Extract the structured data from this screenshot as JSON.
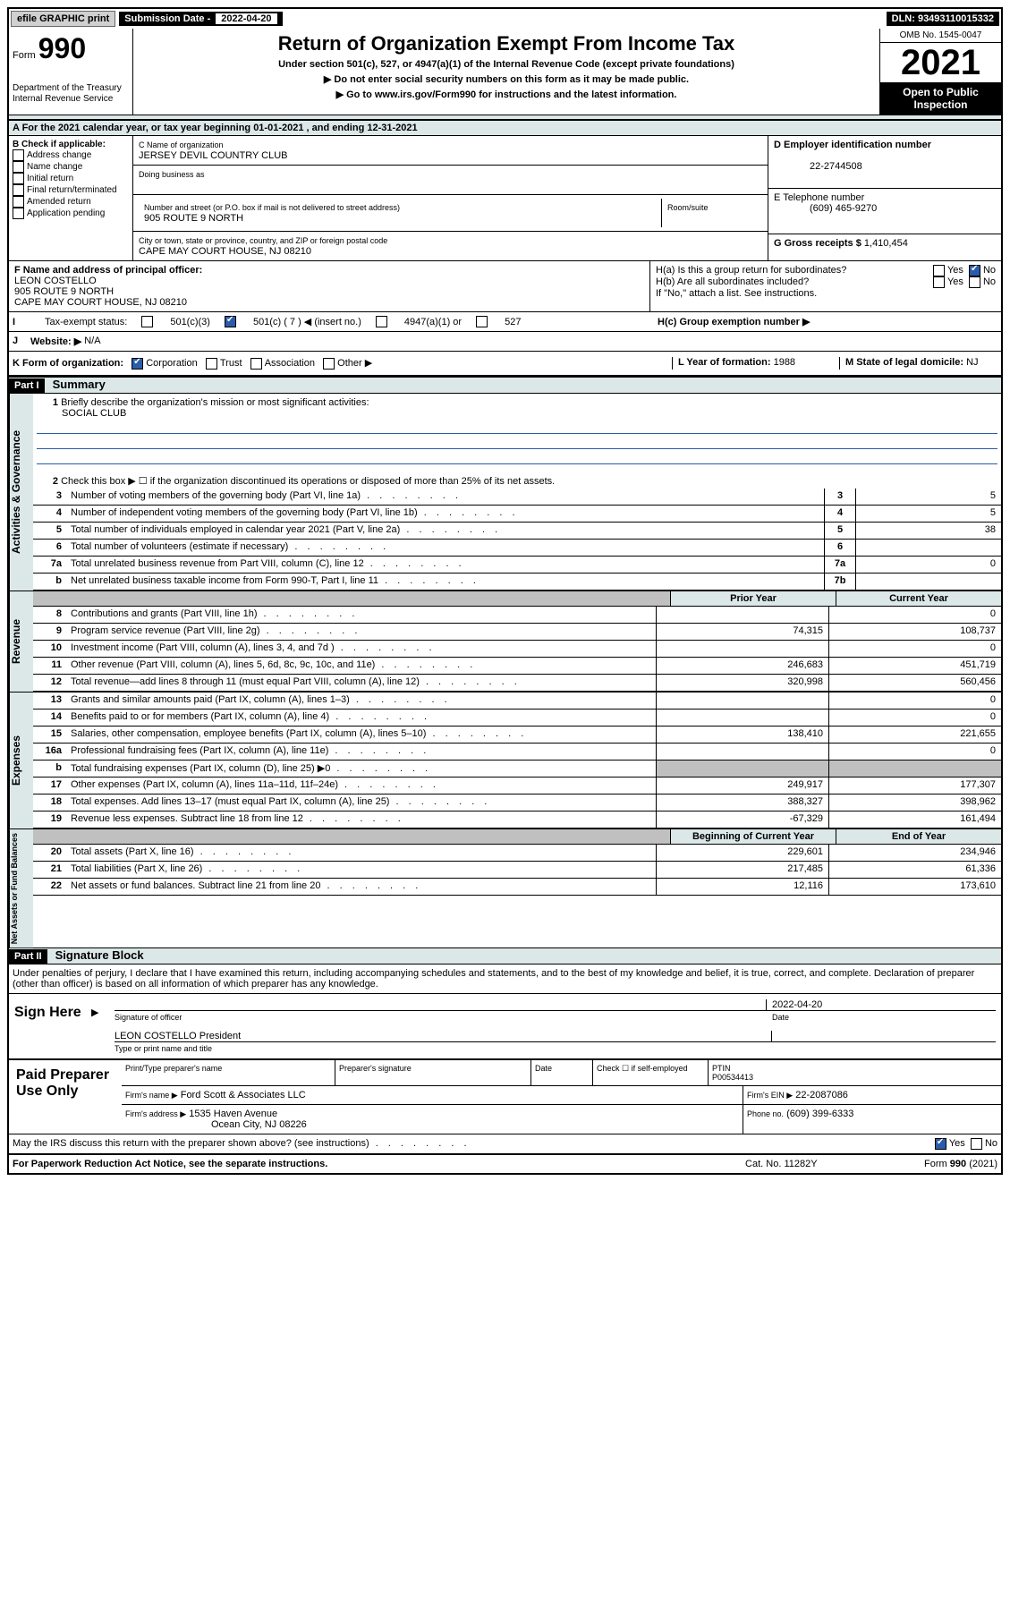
{
  "topbar": {
    "efile": "efile GRAPHIC print",
    "sub_date_label": "Submission Date - ",
    "sub_date": "2022-04-20",
    "dln": "DLN: 93493110015332"
  },
  "header": {
    "form_word": "Form",
    "form_number": "990",
    "title": "Return of Organization Exempt From Income Tax",
    "subtitle1": "Under section 501(c), 527, or 4947(a)(1) of the Internal Revenue Code (except private foundations)",
    "subtitle2": "▶ Do not enter social security numbers on this form as it may be made public.",
    "subtitle3": "▶ Go to www.irs.gov/Form990 for instructions and the latest information.",
    "dept": "Department of the Treasury",
    "irs": "Internal Revenue Service",
    "omb": "OMB No. 1545-0047",
    "year": "2021",
    "open": "Open to Public Inspection"
  },
  "rowA": "A For the 2021 calendar year, or tax year beginning 01-01-2021   , and ending 12-31-2021",
  "sectionB": {
    "label": "B Check if applicable:",
    "opts": [
      "Address change",
      "Name change",
      "Initial return",
      "Final return/terminated",
      "Amended return",
      "Application pending"
    ]
  },
  "sectionC": {
    "name_label": "C Name of organization",
    "name": "JERSEY DEVIL COUNTRY CLUB",
    "dba_label": "Doing business as",
    "street_label": "Number and street (or P.O. box if mail is not delivered to street address)",
    "room_label": "Room/suite",
    "street": "905 ROUTE 9 NORTH",
    "city_label": "City or town, state or province, country, and ZIP or foreign postal code",
    "city": "CAPE MAY COURT HOUSE, NJ  08210"
  },
  "sectionD": {
    "label": "D Employer identification number",
    "ein": "22-2744508"
  },
  "sectionE": {
    "label": "E Telephone number",
    "phone": "(609) 465-9270"
  },
  "sectionG": {
    "label": "G Gross receipts $",
    "amount": "1,410,454"
  },
  "sectionF": {
    "label": "F Name and address of principal officer:",
    "name": "LEON COSTELLO",
    "street": "905 ROUTE 9 NORTH",
    "city": "CAPE MAY COURT HOUSE, NJ  08210"
  },
  "sectionH": {
    "a": "H(a)  Is this a group return for subordinates?",
    "b": "H(b)  Are all subordinates included?",
    "b_note": "If \"No,\" attach a list. See instructions.",
    "c": "H(c)  Group exemption number ▶",
    "yes": "Yes",
    "no": "No"
  },
  "sectionI": {
    "label": "Tax-exempt status:",
    "opts": [
      "501(c)(3)",
      "501(c) ( 7 ) ◀ (insert no.)",
      "4947(a)(1) or",
      "527"
    ]
  },
  "sectionJ": {
    "label": "Website: ▶",
    "val": "N/A"
  },
  "sectionK": {
    "label": "K Form of organization:",
    "opts": [
      "Corporation",
      "Trust",
      "Association",
      "Other ▶"
    ]
  },
  "sectionL": {
    "label": "L Year of formation:",
    "val": "1988"
  },
  "sectionM": {
    "label": "M State of legal domicile:",
    "val": "NJ"
  },
  "partI": {
    "part": "Part I",
    "title": "Summary"
  },
  "summary": {
    "q1": "Briefly describe the organization's mission or most significant activities:",
    "mission": "SOCIAL CLUB",
    "q2": "Check this box ▶ ☐  if the organization discontinued its operations or disposed of more than 25% of its net assets.",
    "rows_gov": [
      {
        "n": "3",
        "desc": "Number of voting members of the governing body (Part VI, line 1a)",
        "box": "3",
        "val": "5"
      },
      {
        "n": "4",
        "desc": "Number of independent voting members of the governing body (Part VI, line 1b)",
        "box": "4",
        "val": "5"
      },
      {
        "n": "5",
        "desc": "Total number of individuals employed in calendar year 2021 (Part V, line 2a)",
        "box": "5",
        "val": "38"
      },
      {
        "n": "6",
        "desc": "Total number of volunteers (estimate if necessary)",
        "box": "6",
        "val": ""
      },
      {
        "n": "7a",
        "desc": "Total unrelated business revenue from Part VIII, column (C), line 12",
        "box": "7a",
        "val": "0"
      },
      {
        "n": "b",
        "desc": "Net unrelated business taxable income from Form 990-T, Part I, line 11",
        "box": "7b",
        "val": ""
      }
    ],
    "prior_year": "Prior Year",
    "current_year": "Current Year",
    "revenue": [
      {
        "n": "8",
        "desc": "Contributions and grants (Part VIII, line 1h)",
        "prior": "",
        "curr": "0"
      },
      {
        "n": "9",
        "desc": "Program service revenue (Part VIII, line 2g)",
        "prior": "74,315",
        "curr": "108,737"
      },
      {
        "n": "10",
        "desc": "Investment income (Part VIII, column (A), lines 3, 4, and 7d )",
        "prior": "",
        "curr": "0"
      },
      {
        "n": "11",
        "desc": "Other revenue (Part VIII, column (A), lines 5, 6d, 8c, 9c, 10c, and 11e)",
        "prior": "246,683",
        "curr": "451,719"
      },
      {
        "n": "12",
        "desc": "Total revenue—add lines 8 through 11 (must equal Part VIII, column (A), line 12)",
        "prior": "320,998",
        "curr": "560,456"
      }
    ],
    "expenses": [
      {
        "n": "13",
        "desc": "Grants and similar amounts paid (Part IX, column (A), lines 1–3)",
        "prior": "",
        "curr": "0"
      },
      {
        "n": "14",
        "desc": "Benefits paid to or for members (Part IX, column (A), line 4)",
        "prior": "",
        "curr": "0"
      },
      {
        "n": "15",
        "desc": "Salaries, other compensation, employee benefits (Part IX, column (A), lines 5–10)",
        "prior": "138,410",
        "curr": "221,655"
      },
      {
        "n": "16a",
        "desc": "Professional fundraising fees (Part IX, column (A), line 11e)",
        "prior": "",
        "curr": "0"
      },
      {
        "n": "b",
        "desc": "Total fundraising expenses (Part IX, column (D), line 25) ▶0",
        "prior": "shaded",
        "curr": "shaded"
      },
      {
        "n": "17",
        "desc": "Other expenses (Part IX, column (A), lines 11a–11d, 11f–24e)",
        "prior": "249,917",
        "curr": "177,307"
      },
      {
        "n": "18",
        "desc": "Total expenses. Add lines 13–17 (must equal Part IX, column (A), line 25)",
        "prior": "388,327",
        "curr": "398,962"
      },
      {
        "n": "19",
        "desc": "Revenue less expenses. Subtract line 18 from line 12",
        "prior": "-67,329",
        "curr": "161,494"
      }
    ],
    "begin_year": "Beginning of Current Year",
    "end_year": "End of Year",
    "net_assets": [
      {
        "n": "20",
        "desc": "Total assets (Part X, line 16)",
        "prior": "229,601",
        "curr": "234,946"
      },
      {
        "n": "21",
        "desc": "Total liabilities (Part X, line 26)",
        "prior": "217,485",
        "curr": "61,336"
      },
      {
        "n": "22",
        "desc": "Net assets or fund balances. Subtract line 21 from line 20",
        "prior": "12,116",
        "curr": "173,610"
      }
    ]
  },
  "side_labels": {
    "gov": "Activities & Governance",
    "rev": "Revenue",
    "exp": "Expenses",
    "net": "Net Assets or Fund Balances"
  },
  "partII": {
    "part": "Part II",
    "title": "Signature Block"
  },
  "perjury": "Under penalties of perjury, I declare that I have examined this return, including accompanying schedules and statements, and to the best of my knowledge and belief, it is true, correct, and complete. Declaration of preparer (other than officer) is based on all information of which preparer has any knowledge.",
  "sign": {
    "here": "Sign Here",
    "sig_officer": "Signature of officer",
    "date": "Date",
    "date_val": "2022-04-20",
    "name_title": "LEON COSTELLO  President",
    "type_name": "Type or print name and title"
  },
  "preparer": {
    "label": "Paid Preparer Use Only",
    "print_name": "Print/Type preparer's name",
    "sig": "Preparer's signature",
    "date": "Date",
    "check_if": "Check ☐ if self-employed",
    "ptin_label": "PTIN",
    "ptin": "P00534413",
    "firm_name_label": "Firm's name      ▶",
    "firm_name": "Ford Scott & Associates LLC",
    "firm_ein_label": "Firm's EIN ▶",
    "firm_ein": "22-2087086",
    "firm_addr_label": "Firm's address ▶",
    "firm_addr": "1535 Haven Avenue",
    "firm_city": "Ocean City, NJ  08226",
    "phone_label": "Phone no.",
    "phone": "(609) 399-6333"
  },
  "discuss": {
    "q": "May the IRS discuss this return with the preparer shown above? (see instructions)",
    "yes": "Yes",
    "no": "No"
  },
  "footer": {
    "left": "For Paperwork Reduction Act Notice, see the separate instructions.",
    "center": "Cat. No. 11282Y",
    "right": "Form 990 (2021)"
  }
}
